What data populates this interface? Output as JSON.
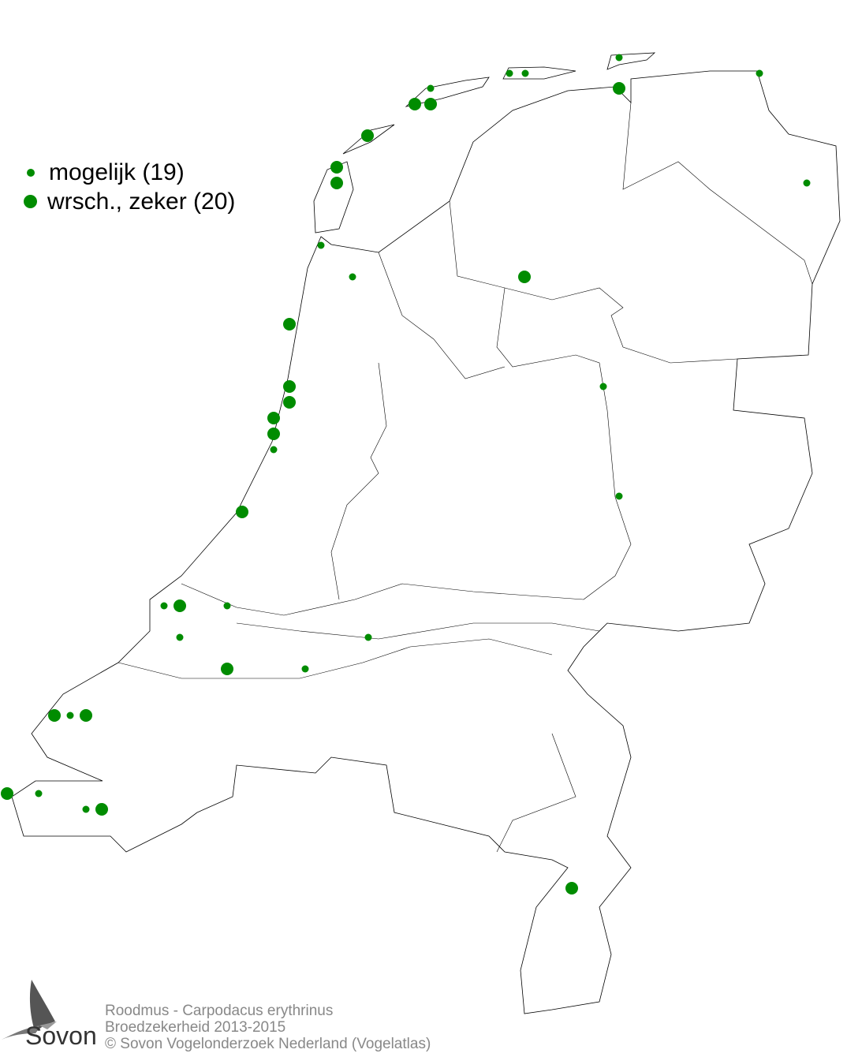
{
  "legend": {
    "items": [
      {
        "label": "mogelijk (19)",
        "size": "small"
      },
      {
        "label": "wrsch., zeker (20)",
        "size": "large"
      }
    ]
  },
  "credits": {
    "species": "Roodmus - Carpodacus erythrinus",
    "subtitle": "Broedzekerheid 2013-2015",
    "copyright": "© Sovon Vogelonderzoek Nederland (Vogelatlas)"
  },
  "logo": {
    "text": "Sovon"
  },
  "colors": {
    "dot": "#008c00",
    "outline": "#000000",
    "credits": "#888888"
  }
}
